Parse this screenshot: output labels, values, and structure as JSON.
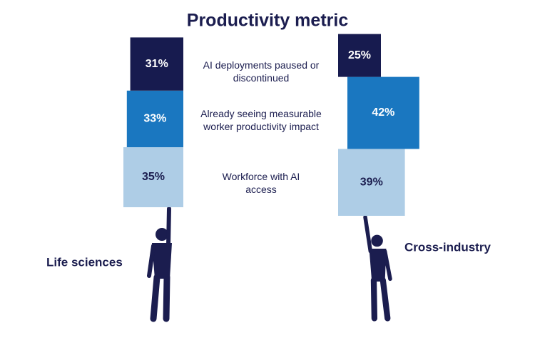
{
  "chart_data": {
    "type": "square-stack",
    "title": "Productivity metric",
    "categories": [
      "Life sciences",
      "Cross-industry"
    ],
    "series": [
      {
        "name": "Workforce with AI access",
        "color": "#aecde6",
        "values": [
          35,
          39
        ],
        "value_labels": [
          "35%",
          "39%"
        ]
      },
      {
        "name": "Already seeing measurable worker productivity impact",
        "color": "#1a77c0",
        "values": [
          33,
          42
        ],
        "value_labels": [
          "33%",
          "42%"
        ]
      },
      {
        "name": "AI deployments paused or discontinued",
        "color": "#171b4f",
        "values": [
          31,
          25
        ],
        "value_labels": [
          "31%",
          "25%"
        ]
      }
    ]
  }
}
